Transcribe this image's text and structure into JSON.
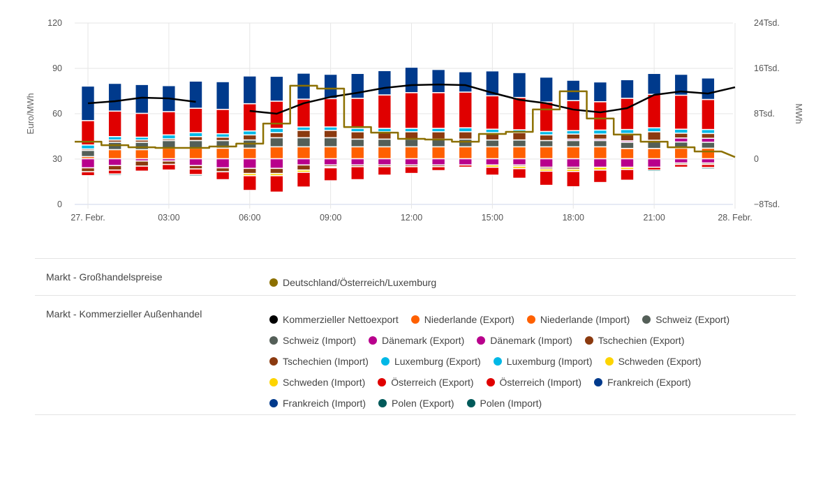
{
  "chart_data": {
    "type": "bar",
    "title": "",
    "xlabel": "",
    "ylabel": "Euro/MWh",
    "ylabel_right": "MWh",
    "ylim": [
      0,
      120
    ],
    "ylim_right": [
      -8000,
      24000
    ],
    "yticks": [
      "0",
      "30",
      "60",
      "90",
      "120"
    ],
    "yticks_right": [
      "−8Tsd.",
      "0",
      "8Tsd.",
      "16Tsd.",
      "24Tsd."
    ],
    "xticks": [
      "27. Febr.",
      "03:00",
      "06:00",
      "09:00",
      "12:00",
      "15:00",
      "18:00",
      "21:00",
      "28. Febr."
    ],
    "x_hours": [
      0,
      1,
      2,
      3,
      4,
      5,
      6,
      7,
      8,
      9,
      10,
      11,
      12,
      13,
      14,
      15,
      16,
      17,
      18,
      19,
      20,
      21,
      22,
      23
    ],
    "grid": true,
    "stacked_bars_mwh": [
      {
        "name": "Niederlande (Export)",
        "color": "#ff6000",
        "values": [
          370,
          1600,
          1600,
          1850,
          1850,
          1850,
          1850,
          2100,
          2100,
          2100,
          2100,
          2100,
          2100,
          2100,
          2100,
          2100,
          2100,
          2100,
          2100,
          2100,
          1800,
          1800,
          1850,
          1850
        ]
      },
      {
        "name": "Schweiz (Export)",
        "color": "#545f58",
        "values": [
          1100,
          1300,
          1300,
          1350,
          1350,
          1350,
          1450,
          1600,
          1600,
          1600,
          1350,
          1350,
          1350,
          1350,
          1350,
          1200,
          1200,
          1100,
          1100,
          1100,
          1100,
          1200,
          1100,
          1050
        ]
      },
      {
        "name": "Dänemark (Export)",
        "color": "#b8008c",
        "values": [
          0,
          0,
          0,
          0,
          0,
          0,
          0,
          0,
          0,
          0,
          0,
          0,
          0,
          0,
          0,
          0,
          0,
          0,
          250,
          250,
          250,
          250,
          700,
          700
        ]
      },
      {
        "name": "Tschechien (Export)",
        "color": "#8b3a0f",
        "values": [
          250,
          400,
          400,
          300,
          700,
          600,
          900,
          900,
          1300,
          1300,
          1300,
          1300,
          1300,
          1300,
          1300,
          1300,
          1300,
          1000,
          900,
          900,
          1300,
          1500,
          850,
          850
        ]
      },
      {
        "name": "Luxemburg (Export)",
        "color": "#00b8e6",
        "values": [
          700,
          600,
          500,
          700,
          700,
          600,
          700,
          750,
          600,
          600,
          600,
          600,
          600,
          600,
          700,
          600,
          500,
          600,
          600,
          700,
          700,
          700,
          700,
          700
        ]
      },
      {
        "name": "Österreich (Export)",
        "color": "#e00000",
        "values": [
          4300,
          4500,
          4200,
          4100,
          4300,
          4300,
          4800,
          4800,
          4900,
          5000,
          5300,
          5900,
          6300,
          6300,
          6300,
          5900,
          5700,
          5200,
          5300,
          5000,
          5500,
          5900,
          6000,
          5300
        ]
      },
      {
        "name": "Frankreich (Export)",
        "color": "#003a8c",
        "values": [
          6100,
          4900,
          5100,
          4600,
          4800,
          4900,
          4900,
          4400,
          4600,
          4300,
          4400,
          4300,
          4500,
          4100,
          3600,
          4400,
          4400,
          4400,
          3600,
          3500,
          3300,
          3700,
          3700,
          3800
        ]
      },
      {
        "name": "Dänemark (Import)",
        "color": "#b8008c",
        "values": [
          -1600,
          -1200,
          -400,
          -400,
          -1200,
          -1600,
          -1700,
          -1700,
          -1100,
          -1100,
          -1100,
          -1100,
          -1100,
          -1100,
          -1100,
          -1100,
          -1100,
          -1500,
          -1500,
          -1500,
          -1500,
          -1500,
          -750,
          -750
        ]
      },
      {
        "name": "Tschechien (Import)",
        "color": "#8b3a0f",
        "values": [
          -700,
          -800,
          -900,
          -600,
          -600,
          -700,
          -900,
          -900,
          -900,
          -300,
          -300,
          -300,
          -300,
          -300,
          0,
          0,
          -250,
          -300,
          -350,
          0,
          0,
          0,
          -250,
          -250
        ]
      },
      {
        "name": "Schweden (Import)",
        "color": "#fdd400",
        "values": [
          0,
          0,
          0,
          0,
          0,
          0,
          -400,
          -400,
          -400,
          -200,
          0,
          0,
          0,
          0,
          0,
          -400,
          -400,
          -400,
          -400,
          -500,
          -400,
          0,
          0,
          0
        ]
      },
      {
        "name": "Österreich (Import)",
        "color": "#e00000",
        "values": [
          -700,
          -700,
          -900,
          -1000,
          -1000,
          -1400,
          -2600,
          -2900,
          -2600,
          -2300,
          -2300,
          -1500,
          -1200,
          -700,
          -400,
          -1400,
          -1700,
          -2500,
          -2700,
          -2200,
          -1900,
          -500,
          -500,
          -550
        ]
      },
      {
        "name": "Polen (Import)",
        "color": "#005a5a",
        "values": [
          -150,
          -250,
          -150,
          -150,
          -250,
          -150,
          0,
          0,
          0,
          0,
          0,
          0,
          0,
          0,
          0,
          -150,
          -150,
          0,
          0,
          -150,
          -150,
          -250,
          -150,
          -250
        ]
      }
    ],
    "series": [
      {
        "name": "Kommerzieller Nettoexport",
        "axis": "right",
        "type": "line",
        "color": "#000000",
        "x": [
          0,
          1,
          2,
          3,
          4,
          5,
          6,
          7,
          8,
          9,
          10,
          11,
          12,
          13,
          14,
          15,
          16,
          17,
          18,
          19,
          20,
          21,
          22,
          23,
          24
        ],
        "values": [
          9840,
          10200,
          10830,
          10700,
          10090,
          null,
          8490,
          8000,
          9840,
          10950,
          11690,
          12550,
          13040,
          13160,
          13040,
          11690,
          10460,
          9840,
          8730,
          8240,
          8980,
          11320,
          11930,
          11560,
          12670
        ]
      },
      {
        "name": "Deutschland/Österreich/Luxemburg",
        "axis": "left",
        "type": "step",
        "color": "#8c7000",
        "x": [
          0,
          1,
          2,
          3,
          4,
          5,
          6,
          7,
          8,
          9,
          10,
          11,
          12,
          13,
          14,
          15,
          16,
          17,
          18,
          19,
          20,
          21,
          22,
          23
        ],
        "values": [
          41.5,
          39.2,
          37.8,
          37.4,
          37.4,
          38.3,
          40.2,
          53.5,
          78.5,
          76.6,
          51.2,
          47.5,
          43.4,
          42.9,
          41.5,
          46.6,
          48.0,
          62.8,
          74.8,
          56.8,
          46.2,
          41.5,
          37.8,
          35.0
        ]
      }
    ]
  },
  "legend": {
    "groups": [
      {
        "category": "Markt - Großhandelspreise",
        "items": [
          {
            "label": "Deutschland/Österreich/Luxemburg",
            "color": "#8c7000"
          }
        ]
      },
      {
        "category": "Markt - Kommerzieller Außenhandel",
        "items": [
          {
            "label": "Kommerzieller Nettoexport",
            "color": "#000000"
          },
          {
            "label": "Niederlande (Export)",
            "color": "#ff6000"
          },
          {
            "label": "Niederlande (Import)",
            "color": "#ff6000"
          },
          {
            "label": "Schweiz (Export)",
            "color": "#545f58"
          },
          {
            "label": "Schweiz (Import)",
            "color": "#545f58"
          },
          {
            "label": "Dänemark (Export)",
            "color": "#b8008c"
          },
          {
            "label": "Dänemark (Import)",
            "color": "#b8008c"
          },
          {
            "label": "Tschechien (Export)",
            "color": "#8b3a0f"
          },
          {
            "label": "Tschechien (Import)",
            "color": "#8b3a0f"
          },
          {
            "label": "Luxemburg (Export)",
            "color": "#00b8e6"
          },
          {
            "label": "Luxemburg (Import)",
            "color": "#00b8e6"
          },
          {
            "label": "Schweden (Export)",
            "color": "#fdd400"
          },
          {
            "label": "Schweden (Import)",
            "color": "#fdd400"
          },
          {
            "label": "Österreich (Export)",
            "color": "#e00000"
          },
          {
            "label": "Österreich (Import)",
            "color": "#e00000"
          },
          {
            "label": "Frankreich (Export)",
            "color": "#003a8c"
          },
          {
            "label": "Frankreich (Import)",
            "color": "#003a8c"
          },
          {
            "label": "Polen (Export)",
            "color": "#005a5a"
          },
          {
            "label": "Polen (Import)",
            "color": "#005a5a"
          }
        ]
      }
    ]
  }
}
